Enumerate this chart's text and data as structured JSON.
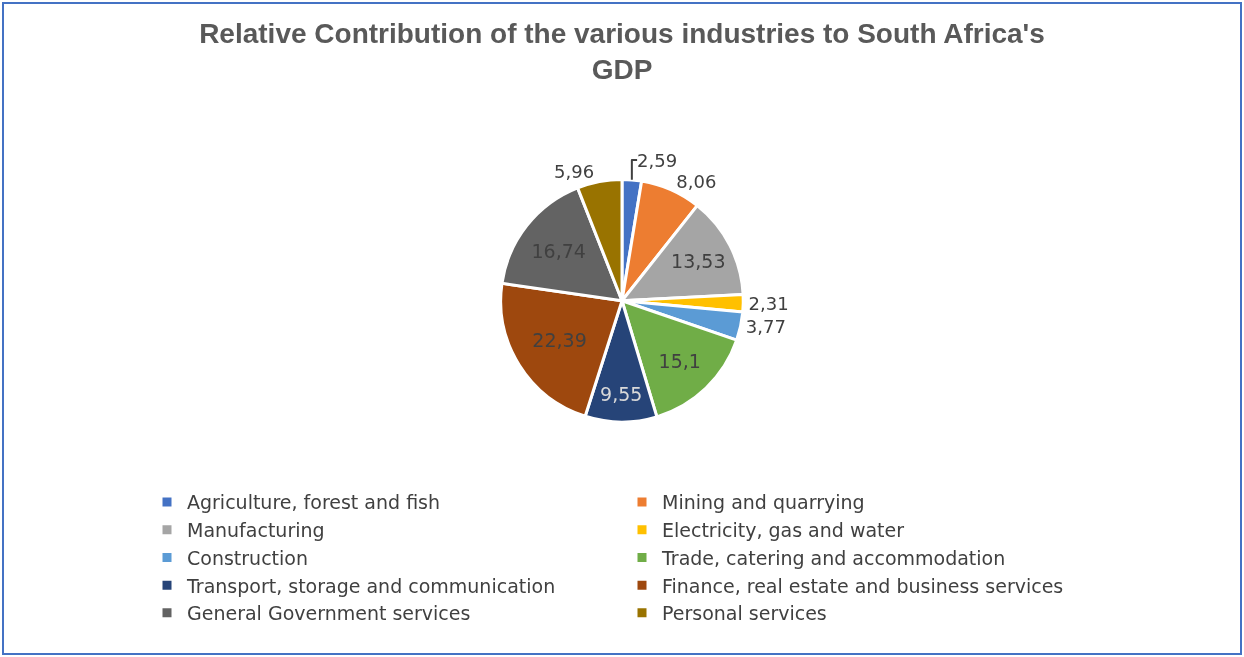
{
  "chart_data": {
    "type": "pie",
    "title": "Relative Contribution of the various industries to South Africa's GDP",
    "categories": [
      "Agriculture, forest and fish",
      "Mining and quarrying",
      "Manufacturing",
      "Electricity, gas and water",
      "Construction",
      "Trade, catering and accommodation",
      "Transport, storage and communication",
      "Finance, real estate and business services",
      "General Government services",
      "Personal services"
    ],
    "values": [
      2.59,
      8.06,
      13.53,
      2.31,
      3.77,
      15.1,
      9.55,
      22.39,
      16.74,
      5.96
    ],
    "value_labels": [
      "2,59",
      "8,06",
      "13,53",
      "2,31",
      "3,77",
      "15,1",
      "9,55",
      "22,39",
      "16,74",
      "5,96"
    ],
    "colors": [
      "#4472c4",
      "#ed7d31",
      "#a5a5a5",
      "#ffc000",
      "#5b9bd5",
      "#70ad47",
      "#264478",
      "#9e480e",
      "#636363",
      "#997300"
    ],
    "legend": "bottom"
  }
}
